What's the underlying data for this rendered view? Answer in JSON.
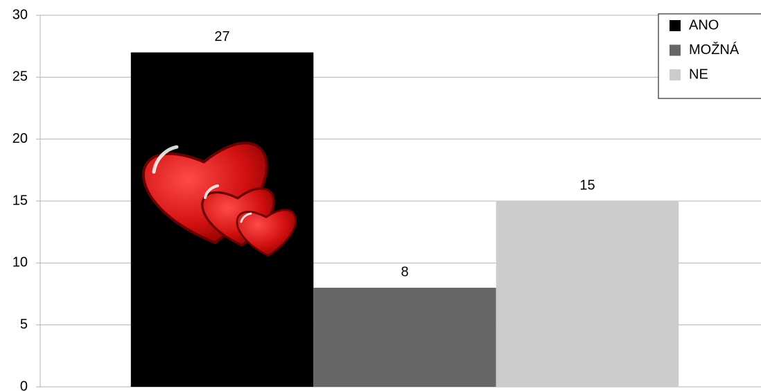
{
  "chart_data": {
    "type": "bar",
    "categories": [
      null
    ],
    "series": [
      {
        "name": "ANO",
        "color": "#000000",
        "values": [
          27
        ]
      },
      {
        "name": "MOŽNÁ",
        "color": "#666666",
        "values": [
          8
        ]
      },
      {
        "name": "NE",
        "color": "#cccccc",
        "values": [
          15
        ]
      }
    ],
    "ylim": [
      0,
      30
    ],
    "yticks": [
      0,
      5,
      10,
      15,
      20,
      25,
      30
    ],
    "grid": true,
    "legend": "top-right"
  }
}
